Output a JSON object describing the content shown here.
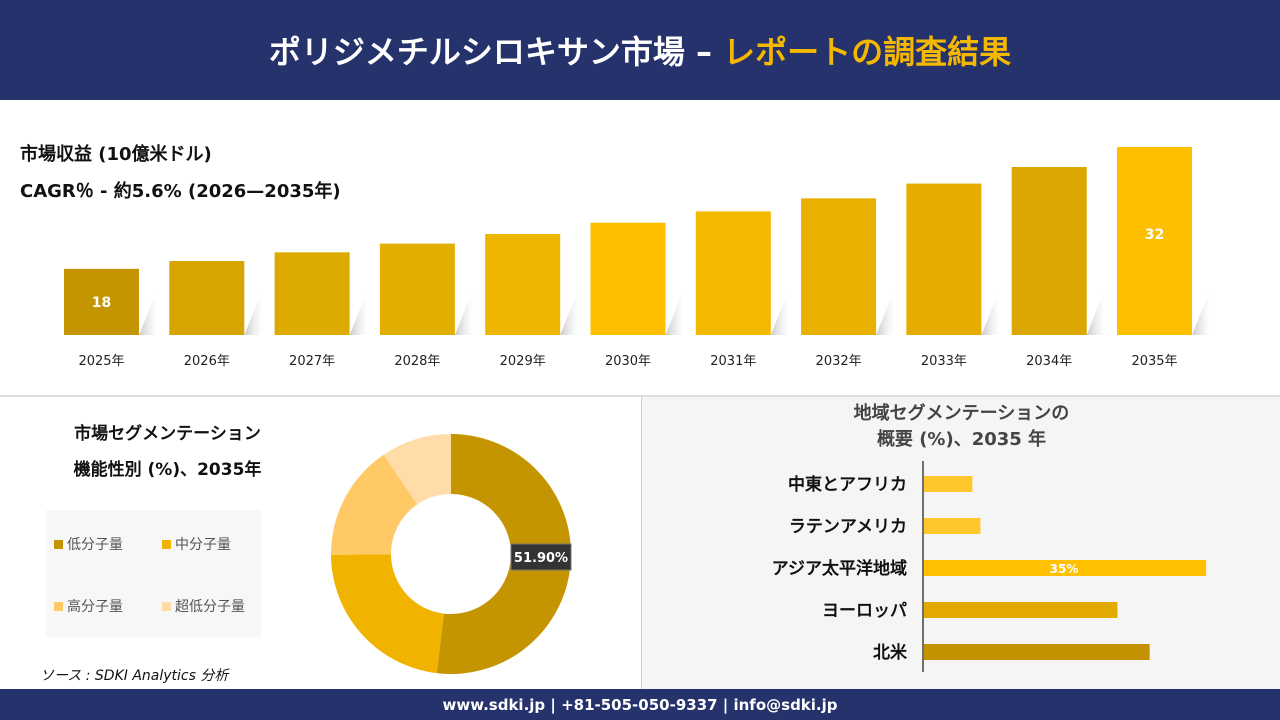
{
  "header": {
    "title_main": "ポリジメチルシロキサン市場 –",
    "title_highlight": "レポートの調査結果"
  },
  "top": {
    "title": "市場収益 (10億米ドル)",
    "cagr": "CAGR％ - 約5.6% (2026—2035年)"
  },
  "chart_data": [
    {
      "type": "bar",
      "categories": [
        "2025年",
        "2026年",
        "2027年",
        "2028年",
        "2029年",
        "2030年",
        "2031年",
        "2032年",
        "2033年",
        "2034年",
        "2035年"
      ],
      "values": [
        18,
        18.9,
        19.9,
        20.9,
        22.0,
        23.3,
        24.6,
        26.1,
        27.8,
        29.7,
        32
      ],
      "data_labels": {
        "0": "18",
        "10": "32"
      },
      "colors": [
        "#c49500",
        "#d6a500",
        "#ddaa00",
        "#e2ae00",
        "#eeb600",
        "#fcc000",
        "#f3b800",
        "#e9b000",
        "#e6ad00",
        "#dca700",
        "#fdbf00"
      ],
      "grid": false
    },
    {
      "type": "pie",
      "title": "市場セグメンテーション 機能性別 (%)、2035年",
      "categories": [
        "低分子量",
        "中分子量",
        "高分子量",
        "超低分子量"
      ],
      "values": [
        51.9,
        23,
        15.6,
        9.5
      ],
      "data_labels": {
        "0": "51.90%"
      },
      "colors": [
        "#c49500",
        "#f0b400",
        "#ffc965",
        "#ffdca8"
      ],
      "legend": "left"
    },
    {
      "type": "bar",
      "orientation": "horizontal",
      "title": "地域セグメンテーションの 概要 (%)、2035 年",
      "categories": [
        "中東とアフリカ",
        "ラテンアメリカ",
        "アジア太平洋地域",
        "ヨーロッパ",
        "北米"
      ],
      "values": [
        6,
        7,
        35,
        24,
        28
      ],
      "data_labels": {
        "2": "35%"
      },
      "colors": [
        "#ffc72c",
        "#ffc72c",
        "#ffc000",
        "#e2a900",
        "#c49100"
      ]
    }
  ],
  "segment": {
    "title1": "市場セグメンテーション",
    "title2": "機能性別 (%)、2035年"
  },
  "region": {
    "title1": "地域セグメンテーションの",
    "title2": "概要 (%)、2035 年"
  },
  "source": "ソース : SDKI Analytics 分析",
  "footer": "www.sdki.jp | +81-505-050-9337 | info@sdki.jp"
}
